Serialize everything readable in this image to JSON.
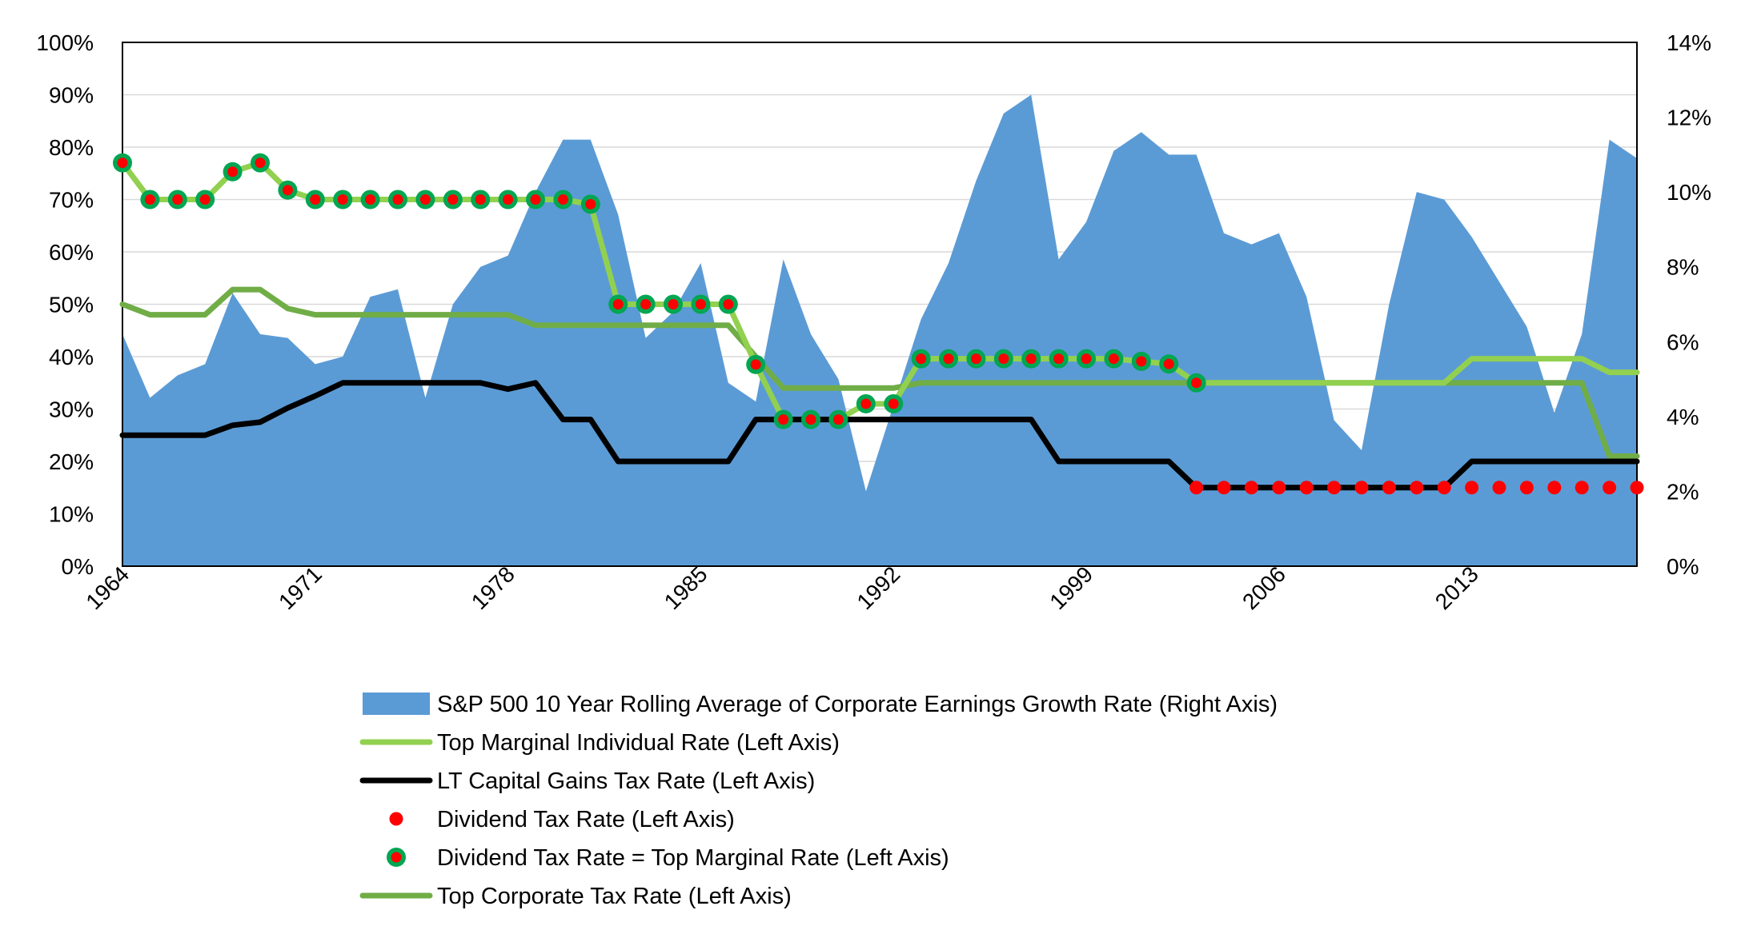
{
  "chart_data": {
    "type": "line",
    "title": "",
    "xlabel": "",
    "ylabel": "",
    "x": [
      1964,
      1965,
      1966,
      1967,
      1968,
      1969,
      1970,
      1971,
      1972,
      1973,
      1974,
      1975,
      1976,
      1977,
      1978,
      1979,
      1980,
      1981,
      1982,
      1983,
      1984,
      1985,
      1986,
      1987,
      1988,
      1989,
      1990,
      1991,
      1992,
      1993,
      1994,
      1995,
      1996,
      1997,
      1998,
      1999,
      2000,
      2001,
      2002,
      2003,
      2004,
      2005,
      2006,
      2007,
      2008,
      2009,
      2010,
      2011,
      2012,
      2013,
      2014,
      2015,
      2016,
      2017,
      2018,
      2019
    ],
    "x_tick_labels": [
      "1964",
      "1971",
      "1978",
      "1985",
      "1992",
      "1999",
      "2006",
      "2013"
    ],
    "y_left": {
      "lim": [
        0,
        100
      ],
      "ticks": [
        "0%",
        "10%",
        "20%",
        "30%",
        "40%",
        "50%",
        "60%",
        "70%",
        "80%",
        "90%",
        "100%"
      ]
    },
    "y_right": {
      "lim": [
        0,
        14
      ],
      "ticks": [
        "0%",
        "2%",
        "4%",
        "6%",
        "8%",
        "10%",
        "12%",
        "14%"
      ]
    },
    "grid": true,
    "legend_position": "bottom",
    "series": [
      {
        "name": "S&P 500 10 Year Rolling Average of Corporate Earnings Growth Rate (Right Axis)",
        "kind": "area",
        "axis": "right",
        "color": "#5b9bd5",
        "values": [
          6.2,
          4.5,
          5.1,
          5.4,
          7.3,
          6.2,
          6.1,
          5.4,
          5.6,
          7.2,
          7.4,
          4.5,
          7.0,
          8.0,
          8.3,
          10.0,
          11.4,
          11.4,
          9.4,
          6.1,
          6.8,
          8.1,
          4.9,
          4.4,
          8.2,
          6.2,
          5.0,
          2.0,
          4.3,
          6.6,
          8.1,
          10.3,
          12.1,
          12.6,
          8.2,
          9.2,
          11.1,
          11.6,
          11.0,
          11.0,
          8.9,
          8.6,
          8.9,
          7.2,
          3.9,
          3.1,
          7.0,
          10.0,
          9.8,
          8.8,
          7.6,
          6.4,
          4.1,
          6.2,
          11.4,
          10.9
        ]
      },
      {
        "name": "Top Marginal Individual Rate (Left Axis)",
        "kind": "line",
        "axis": "left",
        "color": "#92d050",
        "values": [
          77,
          70,
          70,
          70,
          75.3,
          77,
          71.8,
          70,
          70,
          70,
          70,
          70,
          70,
          70,
          70,
          70,
          70,
          69.1,
          50,
          50,
          50,
          50,
          50,
          38.5,
          28,
          28,
          28,
          31,
          31,
          39.6,
          39.6,
          39.6,
          39.6,
          39.6,
          39.6,
          39.6,
          39.6,
          39.1,
          38.6,
          35,
          35,
          35,
          35,
          35,
          35,
          35,
          35,
          35,
          35,
          39.6,
          39.6,
          39.6,
          39.6,
          39.6,
          37,
          37
        ]
      },
      {
        "name": "LT Capital Gains Tax Rate (Left Axis)",
        "kind": "line",
        "axis": "left",
        "color": "#000000",
        "values": [
          25,
          25,
          25,
          25,
          26.9,
          27.5,
          30.2,
          32.5,
          35,
          35,
          35,
          35,
          35,
          35,
          33.8,
          35,
          28,
          28,
          20,
          20,
          20,
          20,
          20,
          28,
          28,
          28,
          28,
          28,
          28,
          28,
          28,
          28,
          28,
          28,
          20,
          20,
          20,
          20,
          20,
          15,
          15,
          15,
          15,
          15,
          15,
          15,
          15,
          15,
          15,
          20,
          20,
          20,
          20,
          20,
          20,
          20
        ]
      },
      {
        "name": "Dividend Tax Rate (Left Axis)",
        "kind": "dots",
        "axis": "left",
        "color": "#ff0000",
        "x": [
          2003,
          2004,
          2005,
          2006,
          2007,
          2008,
          2009,
          2010,
          2011,
          2012,
          2013,
          2014,
          2015,
          2016,
          2017,
          2018,
          2019
        ],
        "values": [
          15,
          15,
          15,
          15,
          15,
          15,
          15,
          15,
          15,
          15,
          15,
          15,
          15,
          15,
          15,
          15,
          15
        ]
      },
      {
        "name": "Dividend Tax Rate = Top Marginal Rate (Left Axis)",
        "kind": "dots",
        "axis": "left",
        "color": "#ff0000",
        "ring_color": "#00a651",
        "x": [
          1964,
          1965,
          1966,
          1967,
          1968,
          1969,
          1970,
          1971,
          1972,
          1973,
          1974,
          1975,
          1976,
          1977,
          1978,
          1979,
          1980,
          1981,
          1982,
          1983,
          1984,
          1985,
          1986,
          1987,
          1988,
          1989,
          1990,
          1991,
          1992,
          1993,
          1994,
          1995,
          1996,
          1997,
          1998,
          1999,
          2000,
          2001,
          2002,
          2003
        ],
        "values": [
          77,
          70,
          70,
          70,
          75.3,
          77,
          71.8,
          70,
          70,
          70,
          70,
          70,
          70,
          70,
          70,
          70,
          70,
          69.1,
          50,
          50,
          50,
          50,
          50,
          38.5,
          28,
          28,
          28,
          31,
          31,
          39.6,
          39.6,
          39.6,
          39.6,
          39.6,
          39.6,
          39.6,
          39.6,
          39.1,
          38.6,
          35
        ]
      },
      {
        "name": "Top Corporate Tax Rate (Left Axis)",
        "kind": "line",
        "axis": "left",
        "color": "#70ad47",
        "values": [
          50,
          48,
          48,
          48,
          52.8,
          52.8,
          49.2,
          48,
          48,
          48,
          48,
          48,
          48,
          48,
          48,
          46,
          46,
          46,
          46,
          46,
          46,
          46,
          46,
          40,
          34,
          34,
          34,
          34,
          34,
          35,
          35,
          35,
          35,
          35,
          35,
          35,
          35,
          35,
          35,
          35,
          35,
          35,
          35,
          35,
          35,
          35,
          35,
          35,
          35,
          35,
          35,
          35,
          35,
          35,
          21,
          21
        ]
      }
    ]
  }
}
